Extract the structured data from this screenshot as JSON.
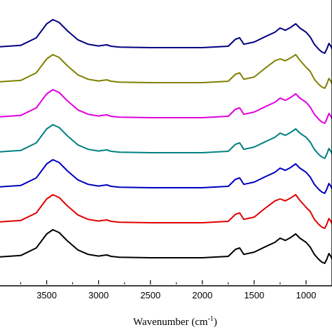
{
  "chart_data": {
    "type": "line",
    "title": "",
    "xlabel": "Wavenumber (cm",
    "xlabel_sup": "-1",
    "xlabel_close": ")",
    "ylabel": "",
    "x_reversed": true,
    "xlim": [
      3950,
      750
    ],
    "x_ticks": [
      3500,
      3000,
      2500,
      2000,
      1500,
      1000
    ],
    "x_tick_labels": [
      "3500",
      "3000",
      "2500",
      "2000",
      "1500",
      "1000"
    ],
    "grid": false,
    "legend": "none",
    "series": [
      {
        "color": "#000080",
        "baseline": 0,
        "x": [
          3950,
          3750,
          3600,
          3500,
          3440,
          3380,
          3300,
          3200,
          3100,
          3000,
          2960,
          2920,
          2880,
          2800,
          2500,
          2000,
          1750,
          1680,
          1640,
          1600,
          1500,
          1400,
          1300,
          1250,
          1200,
          1150,
          1100,
          1060,
          1000,
          960,
          920,
          880,
          850,
          820,
          800,
          780,
          760,
          750
        ],
        "y": [
          0.03,
          0.08,
          0.35,
          0.85,
          1.0,
          0.9,
          0.6,
          0.28,
          0.12,
          0.06,
          0.08,
          0.1,
          0.05,
          0.02,
          0.0,
          0.0,
          0.05,
          0.3,
          0.35,
          0.12,
          0.2,
          0.38,
          0.55,
          0.7,
          0.62,
          0.72,
          0.85,
          0.7,
          0.55,
          0.38,
          0.12,
          -0.05,
          -0.15,
          -0.2,
          -0.05,
          0.15,
          0.05,
          -0.05
        ]
      },
      {
        "color": "#808000",
        "baseline": 1,
        "x": [
          3950,
          3750,
          3600,
          3500,
          3440,
          3380,
          3300,
          3200,
          3100,
          3000,
          2960,
          2920,
          2880,
          2800,
          2500,
          2000,
          1750,
          1680,
          1640,
          1600,
          1500,
          1400,
          1300,
          1250,
          1200,
          1150,
          1100,
          1060,
          1000,
          960,
          920,
          880,
          850,
          820,
          800,
          780,
          760,
          750
        ],
        "y": [
          0.03,
          0.08,
          0.35,
          0.85,
          1.0,
          0.9,
          0.6,
          0.28,
          0.12,
          0.06,
          0.08,
          0.1,
          0.05,
          0.02,
          0.0,
          0.0,
          0.05,
          0.3,
          0.35,
          0.12,
          0.2,
          0.5,
          0.78,
          0.85,
          0.78,
          0.88,
          1.0,
          0.8,
          0.55,
          0.4,
          0.12,
          -0.05,
          -0.15,
          -0.2,
          -0.05,
          0.15,
          0.05,
          -0.05
        ]
      },
      {
        "color": "#e000e0",
        "baseline": 2,
        "x": [
          3950,
          3750,
          3600,
          3500,
          3440,
          3380,
          3300,
          3200,
          3100,
          3000,
          2960,
          2920,
          2880,
          2800,
          2500,
          2000,
          1750,
          1680,
          1640,
          1600,
          1500,
          1400,
          1300,
          1250,
          1200,
          1150,
          1100,
          1060,
          1000,
          960,
          920,
          880,
          850,
          820,
          800,
          780,
          760,
          750
        ],
        "y": [
          0.03,
          0.08,
          0.35,
          0.85,
          1.0,
          0.9,
          0.6,
          0.28,
          0.12,
          0.06,
          0.08,
          0.1,
          0.05,
          0.02,
          0.0,
          0.0,
          0.05,
          0.3,
          0.35,
          0.12,
          0.2,
          0.38,
          0.55,
          0.7,
          0.62,
          0.72,
          0.85,
          0.7,
          0.55,
          0.38,
          0.12,
          -0.05,
          -0.15,
          -0.2,
          -0.05,
          0.15,
          0.05,
          -0.05
        ]
      },
      {
        "color": "#008080",
        "baseline": 3,
        "x": [
          3950,
          3750,
          3600,
          3500,
          3440,
          3380,
          3300,
          3200,
          3100,
          3000,
          2960,
          2920,
          2880,
          2800,
          2500,
          2000,
          1750,
          1680,
          1640,
          1600,
          1500,
          1400,
          1300,
          1250,
          1200,
          1150,
          1100,
          1060,
          1000,
          960,
          920,
          880,
          850,
          820,
          800,
          780,
          760,
          750
        ],
        "y": [
          0.03,
          0.08,
          0.35,
          0.85,
          1.0,
          0.9,
          0.6,
          0.28,
          0.12,
          0.06,
          0.08,
          0.1,
          0.05,
          0.02,
          0.0,
          0.0,
          0.05,
          0.3,
          0.35,
          0.12,
          0.2,
          0.38,
          0.55,
          0.7,
          0.62,
          0.72,
          0.85,
          0.7,
          0.55,
          0.38,
          0.12,
          -0.05,
          -0.15,
          -0.2,
          -0.05,
          0.15,
          0.05,
          -0.05
        ]
      },
      {
        "color": "#0000c0",
        "baseline": 4,
        "x": [
          3950,
          3750,
          3600,
          3500,
          3440,
          3380,
          3300,
          3200,
          3100,
          3000,
          2960,
          2920,
          2880,
          2800,
          2500,
          2000,
          1750,
          1680,
          1640,
          1600,
          1500,
          1400,
          1300,
          1250,
          1200,
          1150,
          1100,
          1060,
          1000,
          960,
          920,
          880,
          850,
          820,
          800,
          780,
          760,
          750
        ],
        "y": [
          0.03,
          0.08,
          0.35,
          0.85,
          1.0,
          0.9,
          0.6,
          0.28,
          0.12,
          0.06,
          0.08,
          0.1,
          0.05,
          0.02,
          0.0,
          0.0,
          0.05,
          0.3,
          0.35,
          0.12,
          0.2,
          0.38,
          0.55,
          0.7,
          0.62,
          0.72,
          0.85,
          0.7,
          0.55,
          0.38,
          0.12,
          -0.05,
          -0.15,
          -0.2,
          -0.05,
          0.15,
          0.05,
          -0.05
        ]
      },
      {
        "color": "#e00000",
        "baseline": 5,
        "x": [
          3950,
          3750,
          3600,
          3500,
          3440,
          3380,
          3300,
          3200,
          3100,
          3000,
          2960,
          2920,
          2880,
          2800,
          2500,
          2000,
          1750,
          1680,
          1640,
          1600,
          1500,
          1400,
          1300,
          1250,
          1200,
          1150,
          1100,
          1060,
          1000,
          960,
          920,
          880,
          850,
          820,
          800,
          780,
          760,
          750
        ],
        "y": [
          0.03,
          0.08,
          0.35,
          0.85,
          1.0,
          0.9,
          0.6,
          0.28,
          0.12,
          0.06,
          0.08,
          0.1,
          0.05,
          0.02,
          0.0,
          0.0,
          0.05,
          0.3,
          0.35,
          0.12,
          0.2,
          0.5,
          0.78,
          0.85,
          0.78,
          0.88,
          1.0,
          0.8,
          0.55,
          0.4,
          0.12,
          -0.05,
          -0.15,
          -0.2,
          -0.05,
          0.15,
          0.05,
          -0.05
        ]
      },
      {
        "color": "#000000",
        "baseline": 6,
        "x": [
          3950,
          3750,
          3600,
          3500,
          3440,
          3380,
          3300,
          3200,
          3100,
          3000,
          2960,
          2920,
          2880,
          2800,
          2500,
          2000,
          1750,
          1680,
          1640,
          1600,
          1500,
          1400,
          1300,
          1250,
          1200,
          1150,
          1100,
          1060,
          1000,
          960,
          920,
          880,
          850,
          820,
          800,
          780,
          760,
          750
        ],
        "y": [
          0.03,
          0.08,
          0.35,
          0.85,
          1.0,
          0.9,
          0.6,
          0.28,
          0.12,
          0.06,
          0.08,
          0.1,
          0.05,
          0.02,
          0.0,
          0.0,
          0.05,
          0.3,
          0.35,
          0.12,
          0.2,
          0.38,
          0.55,
          0.7,
          0.62,
          0.72,
          0.85,
          0.7,
          0.55,
          0.38,
          0.12,
          -0.05,
          -0.15,
          -0.2,
          -0.05,
          0.15,
          0.05,
          -0.05
        ]
      }
    ]
  }
}
